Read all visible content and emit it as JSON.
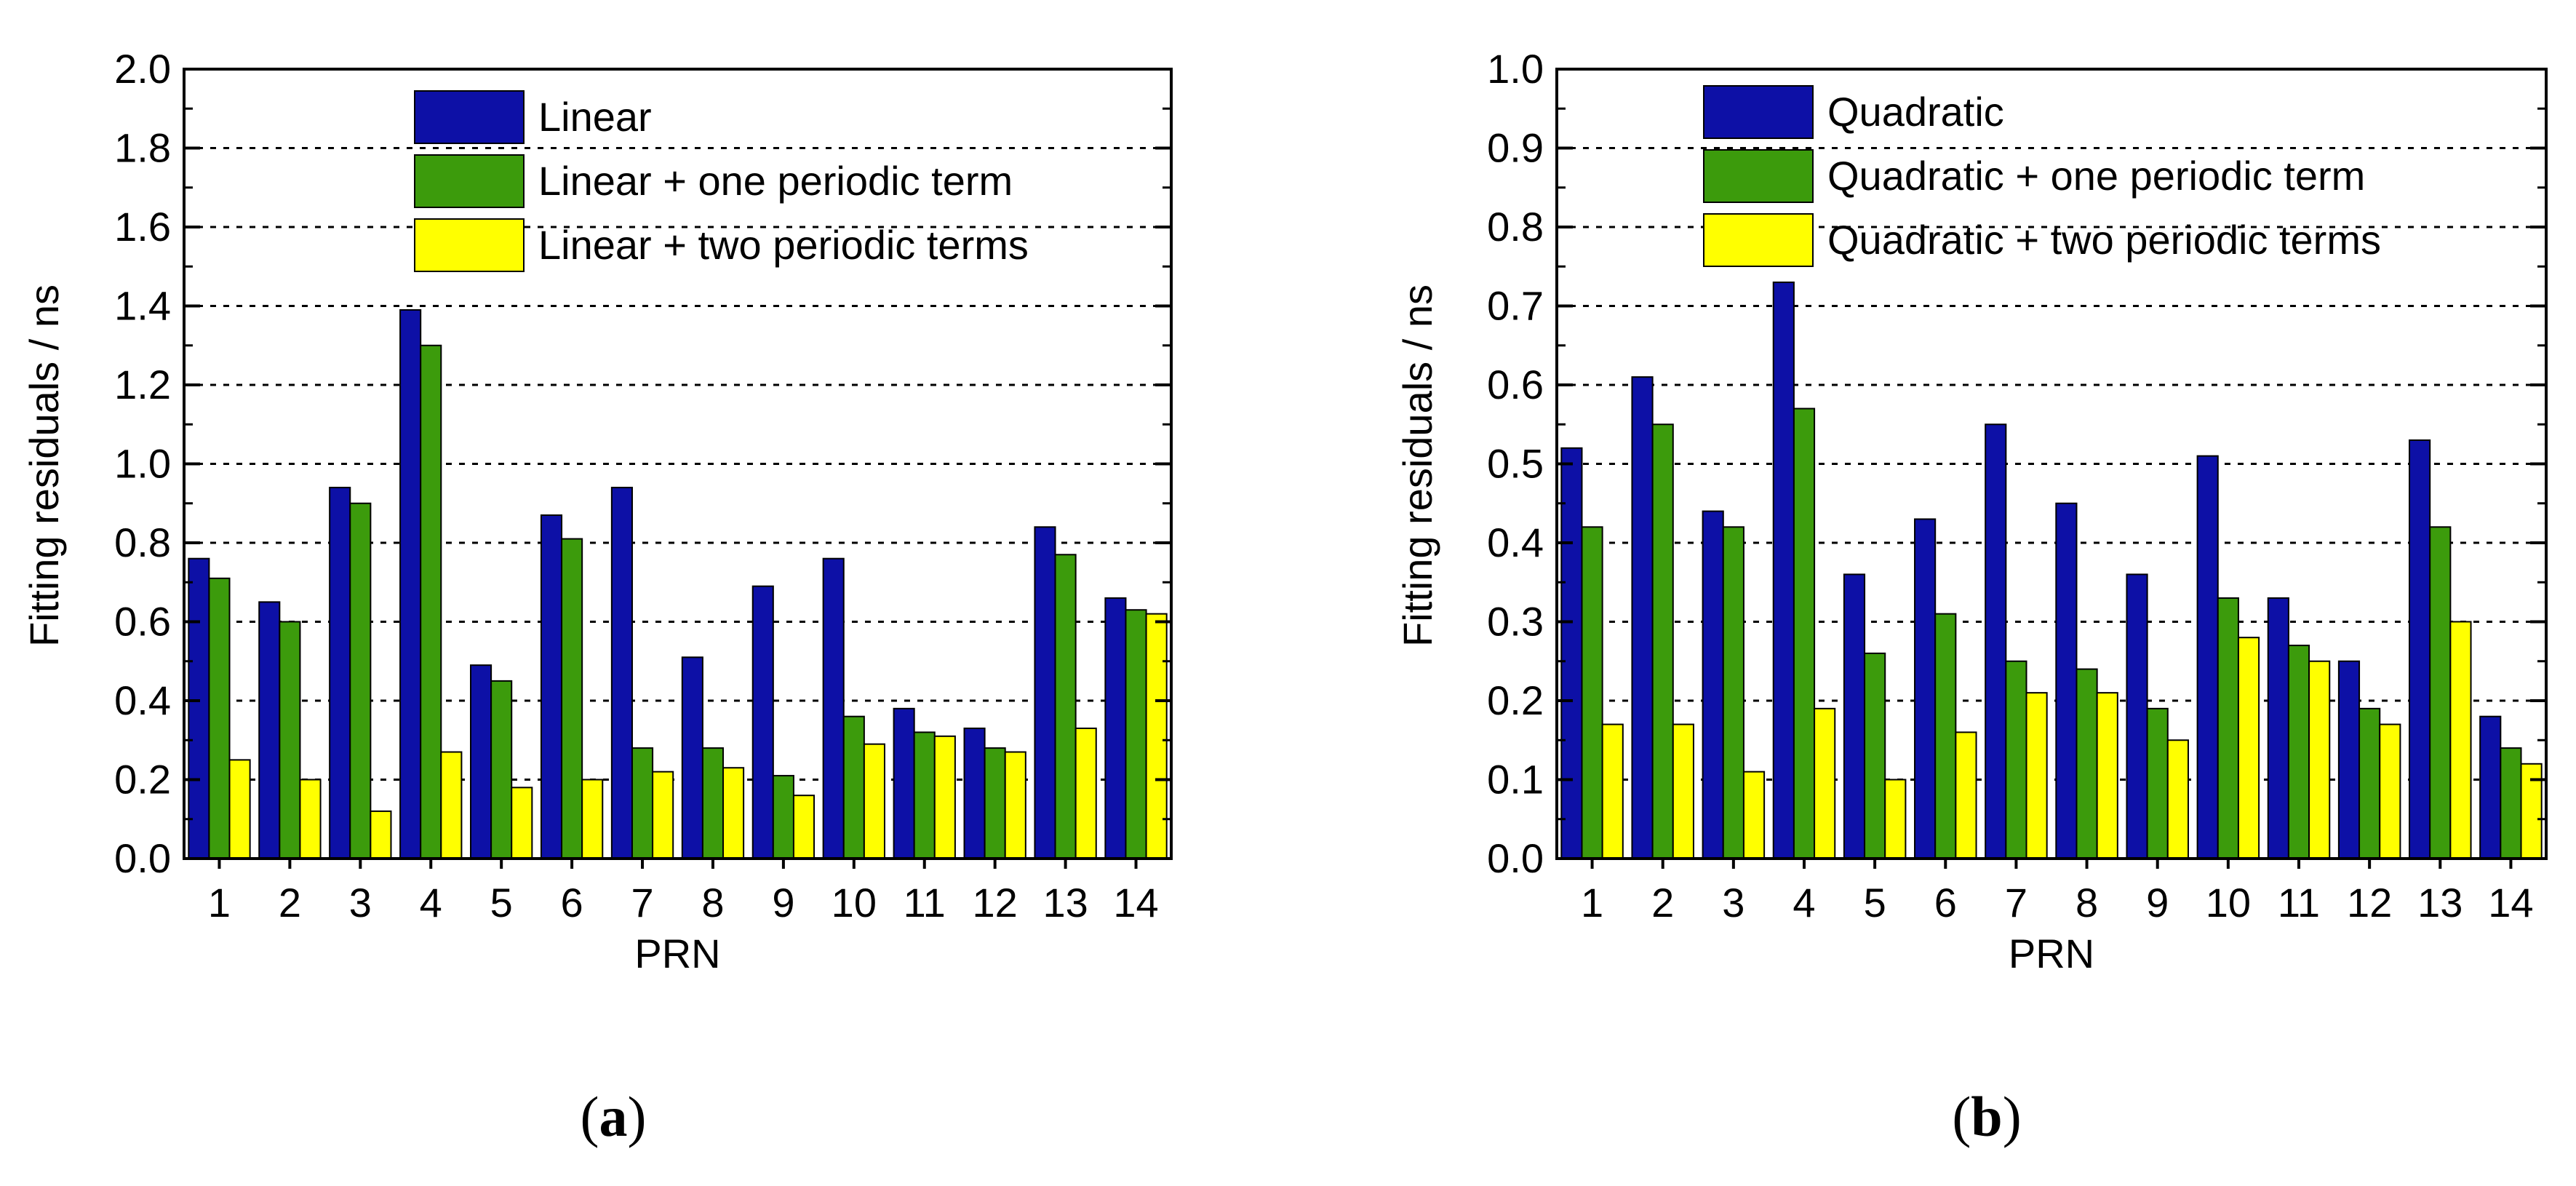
{
  "chart_data": [
    {
      "type": "bar",
      "panel": "a",
      "panel_label_open": "(",
      "panel_label_letter": "a",
      "panel_label_close": ")",
      "title": "",
      "xlabel": "PRN",
      "ylabel": "Fitting residuals / ns",
      "ylim": [
        0,
        2.0
      ],
      "yticks": [
        "0.0",
        "0.2",
        "0.4",
        "0.6",
        "0.8",
        "1.0",
        "1.2",
        "1.4",
        "1.6",
        "1.8",
        "2.0"
      ],
      "grid": "horizontal dotted",
      "legend_position": "top-right",
      "categories": [
        "1",
        "2",
        "3",
        "4",
        "5",
        "6",
        "7",
        "8",
        "9",
        "10",
        "11",
        "12",
        "13",
        "14"
      ],
      "series": [
        {
          "name": "Linear",
          "color": "#0d10a6",
          "values": [
            0.76,
            0.65,
            0.94,
            1.39,
            0.49,
            0.87,
            0.94,
            0.51,
            0.69,
            0.76,
            0.38,
            0.33,
            0.84,
            0.66
          ]
        },
        {
          "name": "Linear + one periodic term",
          "color": "#3c9b0c",
          "values": [
            0.71,
            0.6,
            0.9,
            1.3,
            0.45,
            0.81,
            0.28,
            0.28,
            0.21,
            0.36,
            0.32,
            0.28,
            0.77,
            0.63
          ]
        },
        {
          "name": "Linear + two periodic terms",
          "color": "#ffff00",
          "values": [
            0.25,
            0.2,
            0.12,
            0.27,
            0.18,
            0.2,
            0.22,
            0.23,
            0.16,
            0.29,
            0.31,
            0.27,
            0.33,
            0.62
          ]
        }
      ]
    },
    {
      "type": "bar",
      "panel": "b",
      "panel_label_open": "(",
      "panel_label_letter": "b",
      "panel_label_close": ")",
      "title": "",
      "xlabel": "PRN",
      "ylabel": "Fitting residuals / ns",
      "ylim": [
        0,
        1.0
      ],
      "yticks": [
        "0.0",
        "0.1",
        "0.2",
        "0.3",
        "0.4",
        "0.5",
        "0.6",
        "0.7",
        "0.8",
        "0.9",
        "1.0"
      ],
      "grid": "horizontal dotted",
      "legend_position": "top-right",
      "categories": [
        "1",
        "2",
        "3",
        "4",
        "5",
        "6",
        "7",
        "8",
        "9",
        "10",
        "11",
        "12",
        "13",
        "14"
      ],
      "series": [
        {
          "name": "Quadratic",
          "color": "#0d10a6",
          "values": [
            0.52,
            0.61,
            0.44,
            0.73,
            0.36,
            0.43,
            0.55,
            0.45,
            0.36,
            0.51,
            0.33,
            0.25,
            0.53,
            0.18
          ]
        },
        {
          "name": "Quadratic + one periodic term",
          "color": "#3c9b0c",
          "values": [
            0.42,
            0.55,
            0.42,
            0.57,
            0.26,
            0.31,
            0.25,
            0.24,
            0.19,
            0.33,
            0.27,
            0.19,
            0.42,
            0.14
          ]
        },
        {
          "name": "Quadratic + two periodic terms",
          "color": "#ffff00",
          "values": [
            0.17,
            0.17,
            0.11,
            0.19,
            0.1,
            0.16,
            0.21,
            0.21,
            0.15,
            0.28,
            0.25,
            0.17,
            0.3,
            0.12
          ]
        }
      ]
    }
  ]
}
